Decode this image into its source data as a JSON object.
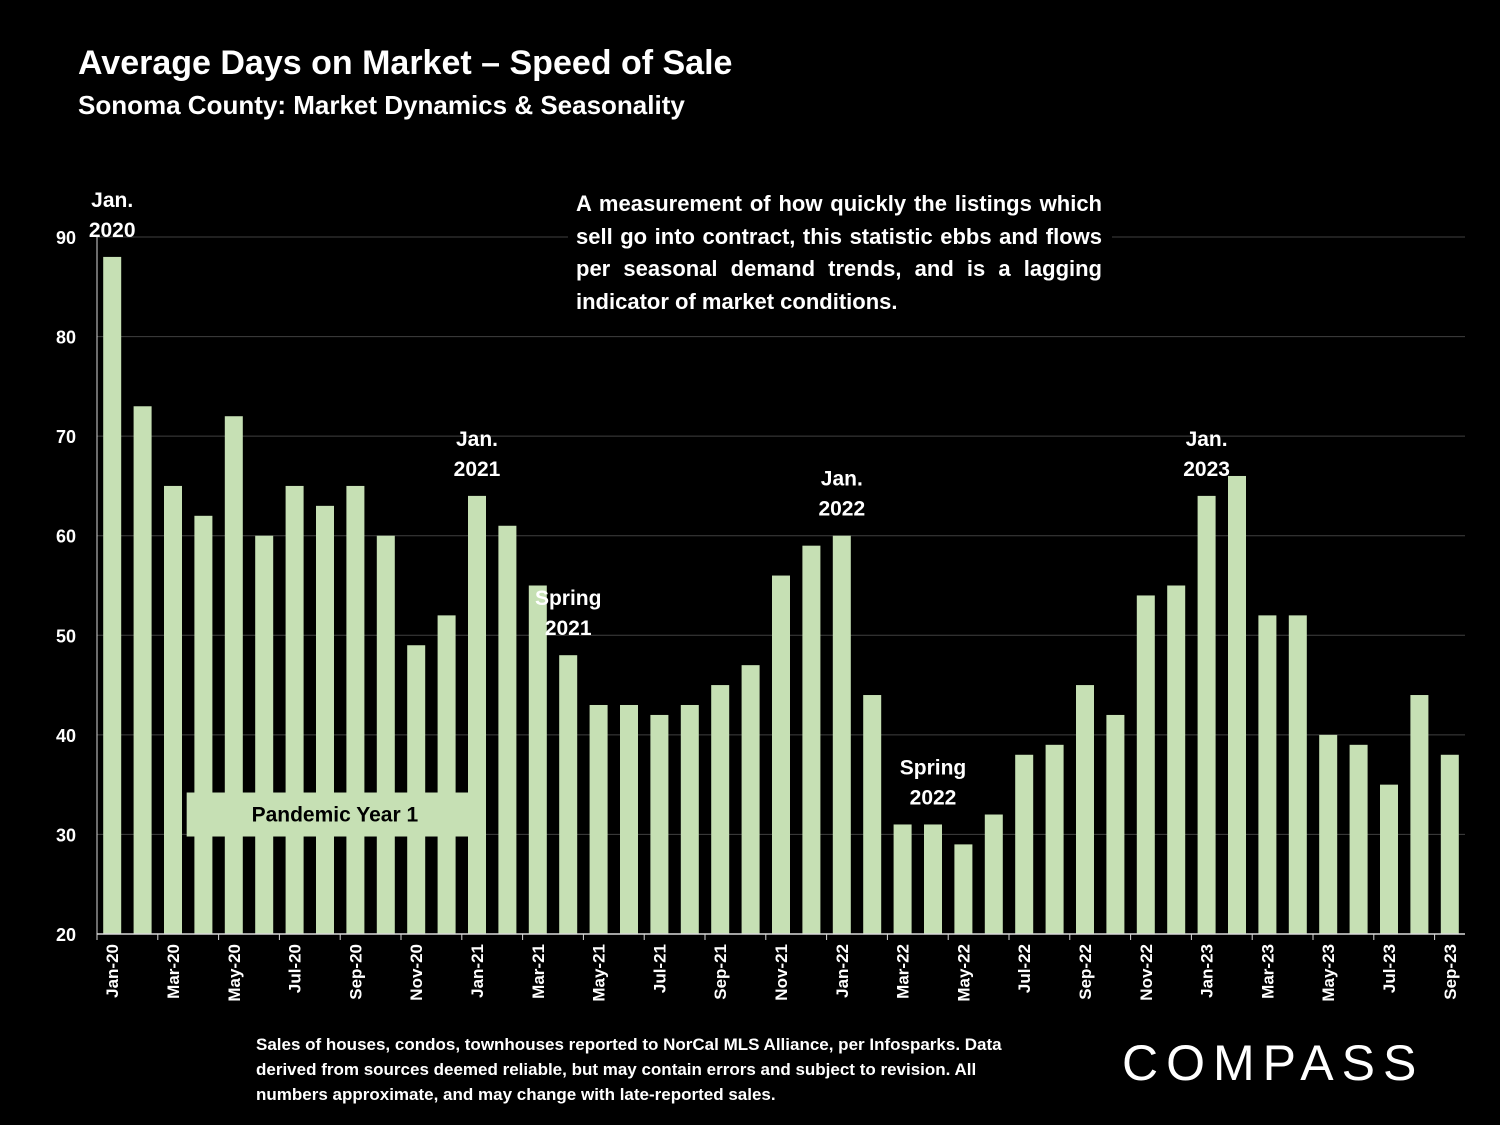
{
  "header": {
    "title": "Average Days on Market – Speed of Sale",
    "subtitle": "Sonoma County: Market Dynamics & Seasonality"
  },
  "description": "A measurement of how quickly the listings which sell go into contract, this statistic ebbs and flows per seasonal demand trends, and is a lagging indicator of market conditions.",
  "footnote": {
    "lines": [
      "Sales of houses, condos, townhouses reported to NorCal MLS Alliance, per Infosparks. Data",
      "derived from sources deemed reliable, but may contain errors and subject to revision. All",
      "numbers approximate, and may change with late-reported sales."
    ]
  },
  "logo_text": "COMPASS",
  "colors": {
    "bar": "#c6e0b4",
    "background": "#000000",
    "grid": "#404040",
    "text": "#ffffff"
  },
  "chart_data": {
    "type": "bar",
    "categories": [
      "Jan-20",
      "Feb-20",
      "Mar-20",
      "Apr-20",
      "May-20",
      "Jun-20",
      "Jul-20",
      "Aug-20",
      "Sep-20",
      "Oct-20",
      "Nov-20",
      "Dec-20",
      "Jan-21",
      "Feb-21",
      "Mar-21",
      "Apr-21",
      "May-21",
      "Jun-21",
      "Jul-21",
      "Aug-21",
      "Sep-21",
      "Oct-21",
      "Nov-21",
      "Dec-21",
      "Jan-22",
      "Feb-22",
      "Mar-22",
      "Apr-22",
      "May-22",
      "Jun-22",
      "Jul-22",
      "Aug-22",
      "Sep-22",
      "Oct-22",
      "Nov-22",
      "Dec-22",
      "Jan-23",
      "Feb-23",
      "Mar-23",
      "Apr-23",
      "May-23",
      "Jun-23",
      "Jul-23",
      "Aug-23",
      "Sep-23"
    ],
    "values": [
      88,
      73,
      65,
      62,
      72,
      60,
      65,
      63,
      65,
      60,
      49,
      52,
      64,
      61,
      55,
      48,
      43,
      43,
      42,
      43,
      45,
      47,
      56,
      59,
      60,
      44,
      31,
      31,
      29,
      32,
      38,
      39,
      45,
      42,
      54,
      55,
      64,
      66,
      52,
      52,
      40,
      39,
      35,
      44,
      38
    ],
    "x_tick_labels": [
      "Jan-20",
      "Mar-20",
      "May-20",
      "Jul-20",
      "Sep-20",
      "Nov-20",
      "Jan-21",
      "Mar-21",
      "May-21",
      "Jul-21",
      "Sep-21",
      "Nov-21",
      "Jan-22",
      "Mar-22",
      "May-22",
      "Jul-22",
      "Sep-22",
      "Nov-22",
      "Jan-23",
      "Mar-23",
      "May-23",
      "Jul-23",
      "Sep-23"
    ],
    "y_ticks": [
      20,
      30,
      40,
      50,
      60,
      70,
      80,
      90
    ],
    "ylim": [
      20,
      90
    ],
    "grid": true,
    "annotations": [
      {
        "lines": [
          "Jan.",
          "2020"
        ],
        "category": "Jan-20"
      },
      {
        "lines": [
          "Jan.",
          "2021"
        ],
        "category": "Jan-21"
      },
      {
        "lines": [
          "Spring",
          "2021"
        ],
        "category": "Apr-21"
      },
      {
        "lines": [
          "Jan.",
          "2022"
        ],
        "category": "Jan-22"
      },
      {
        "lines": [
          "Spring",
          "2022"
        ],
        "category": "Apr-22"
      },
      {
        "lines": [
          "Jan.",
          "2023"
        ],
        "category": "Jan-23"
      }
    ],
    "range_label": {
      "text": "Pandemic Year 1",
      "from": "Apr-20",
      "to": "Jan-21",
      "value": 32
    }
  }
}
